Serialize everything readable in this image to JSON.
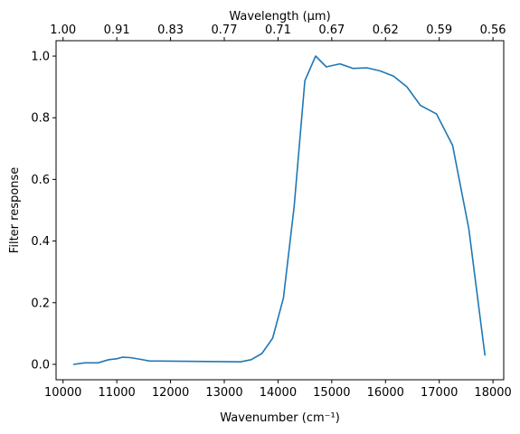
{
  "chart_data": {
    "type": "line",
    "xlabel": "Wavenumber (cm⁻¹)",
    "ylabel": "Filter response",
    "top_xlabel": "Wavelength (μm)",
    "xlim": [
      9870,
      18200
    ],
    "ylim": [
      -0.05,
      1.05
    ],
    "x_ticks": [
      10000,
      11000,
      12000,
      13000,
      14000,
      15000,
      16000,
      17000,
      18000
    ],
    "x_tick_labels": [
      "10000",
      "11000",
      "12000",
      "13000",
      "14000",
      "15000",
      "16000",
      "17000",
      "18000"
    ],
    "y_ticks": [
      0.0,
      0.2,
      0.4,
      0.6,
      0.8,
      1.0
    ],
    "y_tick_labels": [
      "0.0",
      "0.2",
      "0.4",
      "0.6",
      "0.8",
      "1.0"
    ],
    "top_ticks": [
      10000,
      11000,
      12000,
      13000,
      14000,
      15000,
      16000,
      17000,
      18000
    ],
    "top_tick_labels": [
      "1.00",
      "0.91",
      "0.83",
      "0.77",
      "0.71",
      "0.67",
      "0.62",
      "0.59",
      "0.56"
    ],
    "grid": false,
    "series": [
      {
        "color": "#1f77b4",
        "x": [
          10200,
          10400,
          10650,
          10850,
          11000,
          11100,
          11250,
          11450,
          11600,
          13300,
          13500,
          13700,
          13900,
          14100,
          14300,
          14500,
          14700,
          14900,
          15150,
          15400,
          15650,
          15900,
          16150,
          16400,
          16650,
          16950,
          17250,
          17550,
          17850
        ],
        "y": [
          0.0,
          0.005,
          0.005,
          0.015,
          0.018,
          0.023,
          0.022,
          0.016,
          0.011,
          0.008,
          0.015,
          0.035,
          0.085,
          0.215,
          0.51,
          0.92,
          1.0,
          0.965,
          0.975,
          0.96,
          0.962,
          0.952,
          0.935,
          0.9,
          0.84,
          0.812,
          0.71,
          0.44,
          0.03
        ]
      }
    ]
  }
}
